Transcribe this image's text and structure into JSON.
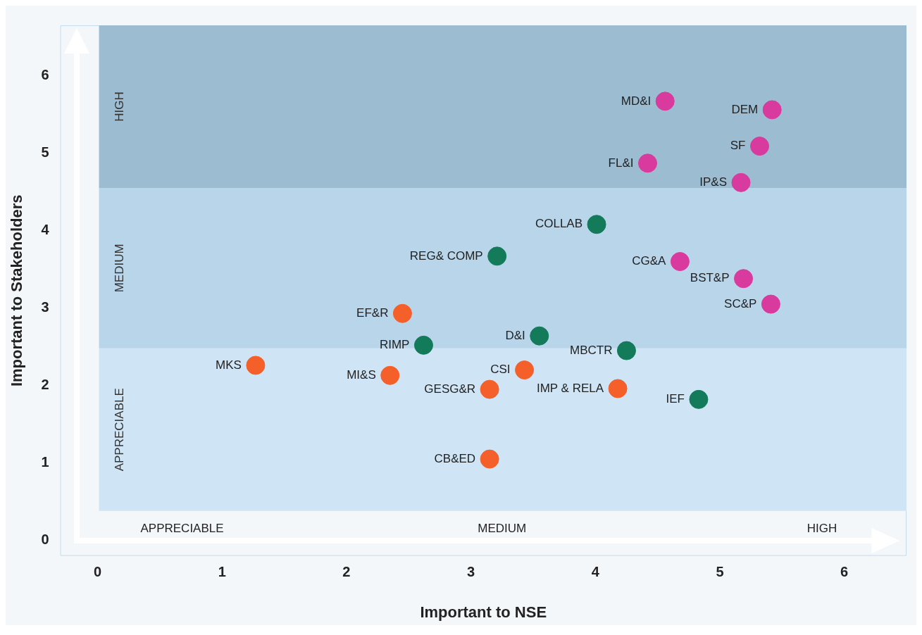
{
  "chart_data": {
    "type": "scatter",
    "xlabel": "Important to NSE",
    "ylabel": "Important to Stakeholders",
    "xlim": [
      -0.3,
      6.5
    ],
    "ylim": [
      -0.2,
      6.65
    ],
    "xticks": [
      0,
      1,
      2,
      3,
      4,
      5,
      6
    ],
    "yticks": [
      0,
      1,
      2,
      3,
      4,
      5,
      6
    ],
    "grid": false,
    "legend": false,
    "marker": "circle",
    "series": [
      {
        "color": "#d93a9e",
        "x": [
          4.56,
          5.42,
          5.32,
          4.42,
          5.17,
          4.68,
          5.19,
          5.41
        ],
        "values": [
          5.67,
          5.56,
          5.09,
          4.87,
          4.62,
          3.6,
          3.38,
          3.05
        ]
      },
      {
        "color": "#137a5a",
        "x": [
          4.01,
          3.21,
          3.55,
          2.62,
          4.25,
          4.83
        ],
        "values": [
          4.08,
          3.67,
          2.64,
          2.52,
          2.45,
          1.82
        ]
      },
      {
        "color": "#f5602a",
        "x": [
          2.45,
          1.27,
          2.35,
          3.43,
          3.15,
          4.18,
          3.15
        ],
        "values": [
          2.93,
          2.26,
          2.13,
          2.2,
          1.95,
          1.96,
          1.05
        ]
      }
    ],
    "bands": [
      {
        "axis": "y",
        "from": 0.38,
        "to": 2.48,
        "label": "APPRECIABLE",
        "color": "#cfe5f6"
      },
      {
        "axis": "y",
        "from": 2.48,
        "to": 4.55,
        "label": "MEDIUM",
        "color": "#b8d5ea"
      },
      {
        "axis": "y",
        "from": 4.55,
        "to": 6.65,
        "label": "HIGH",
        "color": "#9cbcd1"
      }
    ],
    "annotations": [
      {
        "text": "MD&I",
        "x": 4.56,
        "y": 5.67
      },
      {
        "text": "DEM",
        "x": 5.42,
        "y": 5.56
      },
      {
        "text": "SF",
        "x": 5.32,
        "y": 5.09
      },
      {
        "text": "FL&I",
        "x": 4.42,
        "y": 4.87
      },
      {
        "text": "IP&S",
        "x": 5.17,
        "y": 4.62
      },
      {
        "text": "CG&A",
        "x": 4.68,
        "y": 3.6
      },
      {
        "text": "BST&P",
        "x": 5.19,
        "y": 3.38
      },
      {
        "text": "SC&P",
        "x": 5.41,
        "y": 3.05
      },
      {
        "text": "COLLAB",
        "x": 4.01,
        "y": 4.08
      },
      {
        "text": "REG& COMP",
        "x": 3.21,
        "y": 3.67
      },
      {
        "text": "D&I",
        "x": 3.55,
        "y": 2.64
      },
      {
        "text": "RIMP",
        "x": 2.62,
        "y": 2.52
      },
      {
        "text": "MBCTR",
        "x": 4.25,
        "y": 2.45
      },
      {
        "text": "IEF",
        "x": 4.83,
        "y": 1.82
      },
      {
        "text": "EF&R",
        "x": 2.45,
        "y": 2.93
      },
      {
        "text": "MKS",
        "x": 1.27,
        "y": 2.26
      },
      {
        "text": "MI&S",
        "x": 2.35,
        "y": 2.13
      },
      {
        "text": "CSI",
        "x": 3.43,
        "y": 2.2
      },
      {
        "text": "GESG&R",
        "x": 3.15,
        "y": 1.95
      },
      {
        "text": "IMP & RELA",
        "x": 4.18,
        "y": 1.96
      },
      {
        "text": "CB&ED",
        "x": 3.15,
        "y": 1.05
      },
      "APPRECIABLE",
      "MEDIUM",
      "HIGH"
    ]
  }
}
